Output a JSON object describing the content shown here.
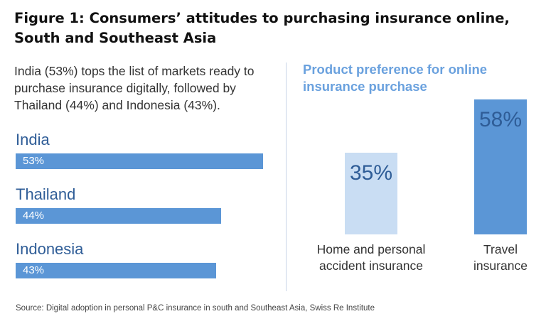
{
  "figure": {
    "title": "Figure 1: Consumers’ attitudes to purchasing insurance online, South and Southeast Asia",
    "intro": "India (53%) tops the list of markets ready to purchase insurance digitally, followed by Thailand (44%) and Indonesia (43%).",
    "source": "Source: Digital adoption in personal P&C insurance in south and Southeast Asia, Swiss Re Institute"
  },
  "chart_data": [
    {
      "type": "bar",
      "orientation": "horizontal",
      "categories": [
        "India",
        "Thailand",
        "Indonesia"
      ],
      "values": [
        53,
        44,
        43
      ],
      "value_labels": [
        "53%",
        "44%",
        "43%"
      ],
      "unit": "%",
      "color": "#5b96d6",
      "label_color": "#2f5d97"
    },
    {
      "type": "bar",
      "orientation": "vertical",
      "title": "Product preference for online insurance purchase",
      "categories": [
        "Home and personal accident insurance",
        "Travel insurance"
      ],
      "category_lines": [
        [
          "Home and personal",
          "accident insurance"
        ],
        [
          "Travel",
          "insurance"
        ]
      ],
      "values": [
        35,
        58
      ],
      "value_labels": [
        "35%",
        "58%"
      ],
      "unit": "%",
      "colors": [
        "#c9ddf3",
        "#5b96d6"
      ]
    }
  ]
}
